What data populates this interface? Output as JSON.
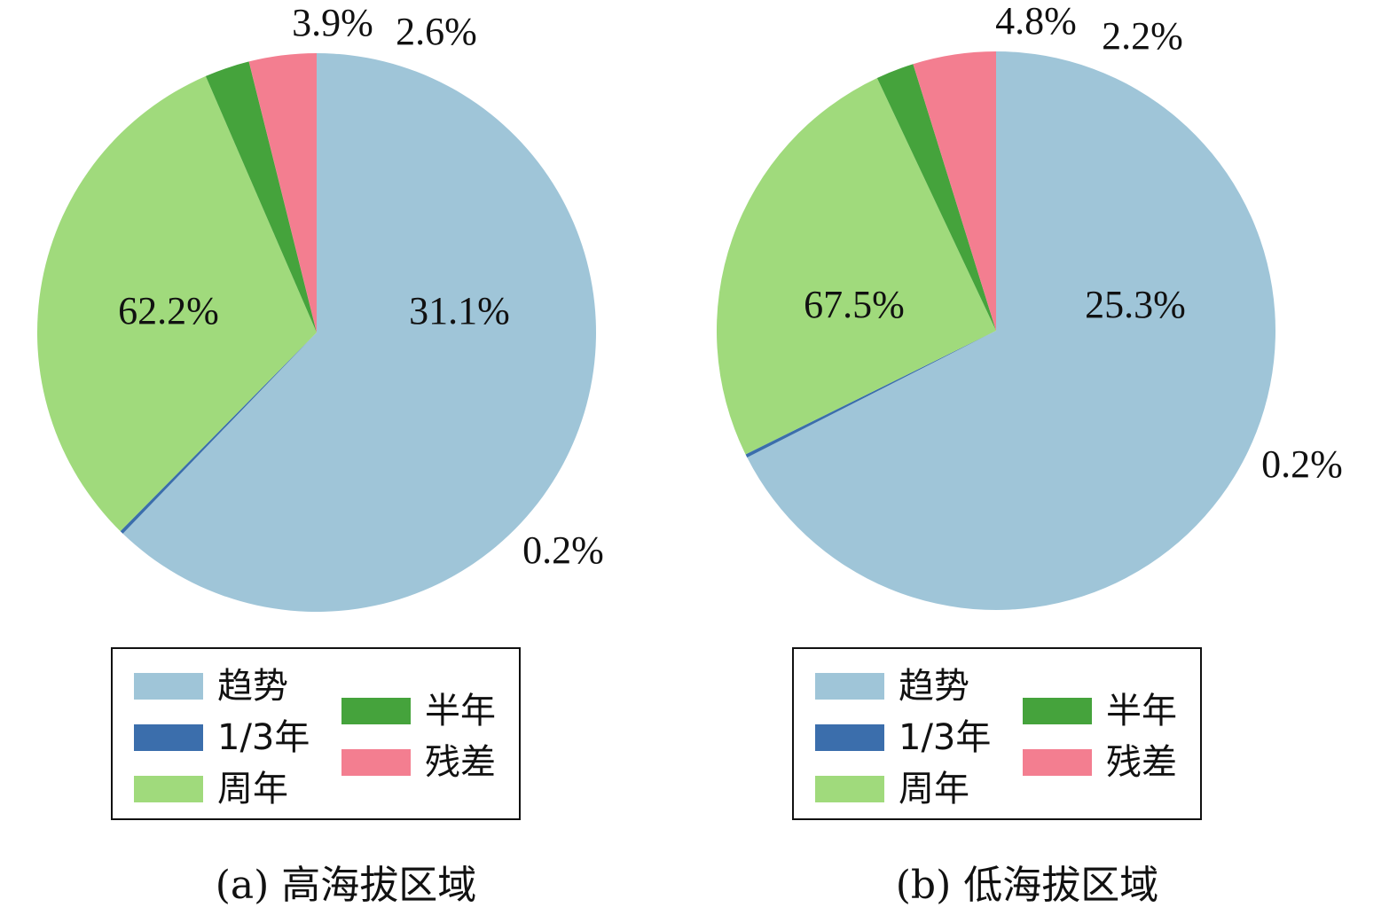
{
  "chart_data": [
    {
      "type": "pie",
      "caption": "(a) 高海拔区域",
      "slices": [
        {
          "name": "趋势",
          "value": 62.2,
          "label": "62.2%",
          "color": "#9fc5d8"
        },
        {
          "name": "1/3年",
          "value": 0.2,
          "label": "0.2%",
          "color": "#3b6eac"
        },
        {
          "name": "周年",
          "value": 31.1,
          "label": "31.1%",
          "color": "#a0da7c"
        },
        {
          "name": "半年",
          "value": 2.6,
          "label": "2.6%",
          "color": "#45a33c"
        },
        {
          "name": "残差",
          "value": 3.9,
          "label": "3.9%",
          "color": "#f37e90"
        }
      ],
      "legend": [
        "趋势",
        "1/3年",
        "周年",
        "半年",
        "残差"
      ]
    },
    {
      "type": "pie",
      "caption": "(b) 低海拔区域",
      "slices": [
        {
          "name": "趋势",
          "value": 67.5,
          "label": "67.5%",
          "color": "#9fc5d8"
        },
        {
          "name": "1/3年",
          "value": 0.2,
          "label": "0.2%",
          "color": "#3b6eac"
        },
        {
          "name": "周年",
          "value": 25.3,
          "label": "25.3%",
          "color": "#a0da7c"
        },
        {
          "name": "半年",
          "value": 2.2,
          "label": "2.2%",
          "color": "#45a33c"
        },
        {
          "name": "残差",
          "value": 4.8,
          "label": "4.8%",
          "color": "#f37e90"
        }
      ],
      "legend": [
        "趋势",
        "1/3年",
        "周年",
        "半年",
        "残差"
      ]
    }
  ]
}
